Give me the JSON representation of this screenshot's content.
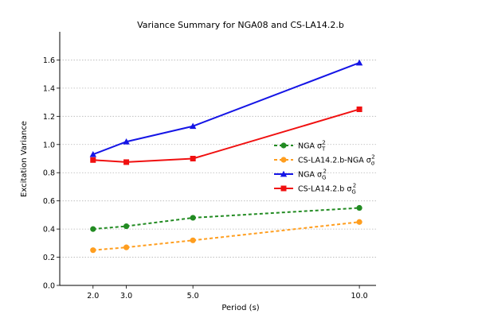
{
  "chart_data": {
    "type": "line",
    "title": "Variance Summary for NGA08 and CS-LA14.2.b",
    "xlabel": "Period (s)",
    "ylabel": "Excitation Variance",
    "x": [
      2.0,
      3.0,
      5.0,
      10.0
    ],
    "x_tick_labels": [
      "2.0",
      "3.0",
      "5.0",
      "10.0"
    ],
    "y_tick_labels": [
      "0.0",
      "0.2",
      "0.4",
      "0.6",
      "0.8",
      "1.0",
      "1.2",
      "1.4",
      "1.6"
    ],
    "xlim": [
      1.0,
      10.5
    ],
    "ylim": [
      0.0,
      1.8
    ],
    "grid": "y-dotted",
    "legend_position": "center-right",
    "series": [
      {
        "key": "nga_tau",
        "name": "NGA",
        "symbol": "σ",
        "sub": "T",
        "sup": "2",
        "color": "#228B22",
        "marker": "circle",
        "dash": true,
        "values": [
          0.4,
          0.42,
          0.48,
          0.55
        ]
      },
      {
        "key": "cs_nga_sigma",
        "name": "CS-LA14.2.b-NGA",
        "symbol": "σ",
        "sub": "σ",
        "sup": "2",
        "color": "#FF9E1F",
        "marker": "circle",
        "dash": true,
        "values": [
          0.25,
          0.27,
          0.32,
          0.45
        ]
      },
      {
        "key": "nga_g",
        "name": "NGA",
        "symbol": "σ",
        "sub": "G",
        "sup": "2",
        "color": "#1515E6",
        "marker": "triangle",
        "dash": false,
        "values": [
          0.93,
          1.02,
          1.13,
          1.58
        ]
      },
      {
        "key": "cs_g",
        "name": "CS-LA14.2.b",
        "symbol": "σ",
        "sub": "G",
        "sup": "2",
        "color": "#F01010",
        "marker": "square",
        "dash": false,
        "values": [
          0.89,
          0.875,
          0.9,
          1.25
        ]
      }
    ]
  }
}
